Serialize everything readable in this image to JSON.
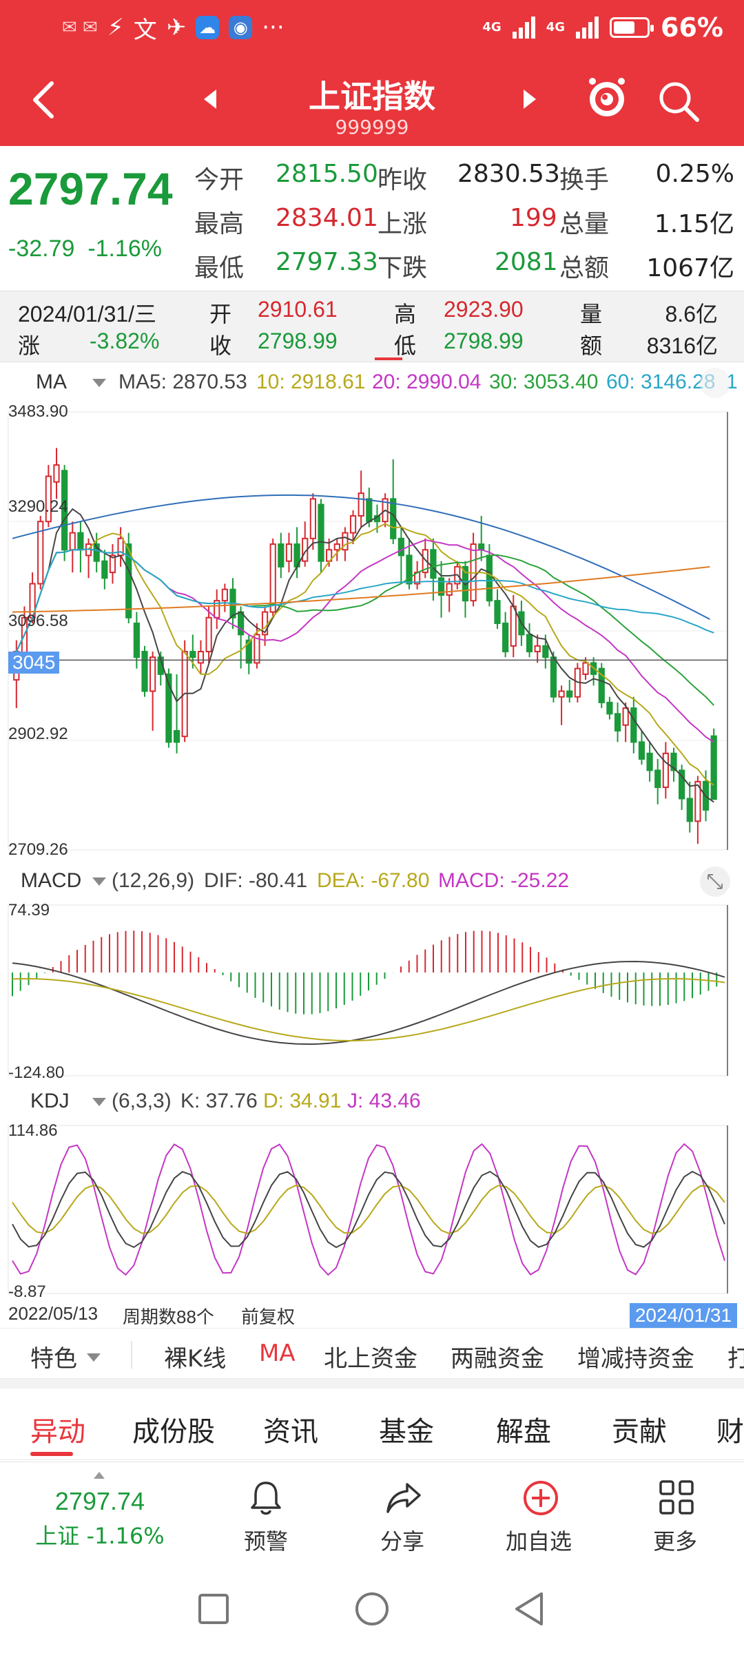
{
  "status": {
    "app_glyphs": [
      "⚡",
      "文",
      "✈"
    ],
    "network1": "4G",
    "network2": "4G",
    "battery_text": "66%",
    "battery_level": 0.66,
    "more": "···"
  },
  "nav": {
    "title": "上证指数",
    "code": "999999"
  },
  "quote": {
    "price": "2797.74",
    "change": "-32.79",
    "change_pct": "-1.16%",
    "open_label": "今开",
    "open": "2815.50",
    "prev_close_label": "昨收",
    "prev_close": "2830.53",
    "turnover_label": "换手",
    "turnover": "0.25%",
    "high_label": "最高",
    "high": "2834.01",
    "up_label": "上涨",
    "up": "199",
    "volume_label": "总量",
    "volume": "1.15亿",
    "low_label": "最低",
    "low": "2797.33",
    "down_label": "下跌",
    "down": "2081",
    "amount_label": "总额",
    "amount": "1067亿"
  },
  "day": {
    "date": "2024/01/31/三",
    "chg_label": "涨",
    "chg": "-3.82%",
    "open_label": "开",
    "open": "2910.61",
    "close_label": "收",
    "close": "2798.99",
    "high_label": "高",
    "high": "2923.90",
    "low_label": "低",
    "low": "2798.99",
    "vol_label": "量",
    "vol": "8.6亿",
    "amt_label": "额",
    "amt": "8316亿"
  },
  "ma_legend": {
    "name": "MA",
    "ma5": "MA5: 2870.53",
    "ma10": "10: 2918.61",
    "ma20": "20: 2990.04",
    "ma30": "30: 3053.40",
    "ma60": "60: 3146.28",
    "trailing": "1"
  },
  "macd_legend": {
    "name": "MACD",
    "params": "(12,26,9)",
    "dif": "DIF: -80.41",
    "dea": "DEA: -67.80",
    "macd": "MACD: -25.22"
  },
  "kdj_legend": {
    "name": "KDJ",
    "params": "(6,3,3)",
    "k": "K: 37.76",
    "d": "D: 34.91",
    "j": "J: 43.46"
  },
  "colors": {
    "up": "#d6282f",
    "down": "#1a9a3a",
    "ma5": "#444444",
    "ma10": "#b7a81a",
    "ma20": "#c436c4",
    "ma30": "#2aa23a",
    "ma60": "#2aa6c8",
    "ma_long1": "#2f6db8",
    "ma_long2": "#e07a20"
  },
  "chart_data": [
    {
      "type": "candlestick",
      "title": "MA",
      "y_ticks": [
        "3483.90",
        "3290.24",
        "3096.58",
        "2902.92",
        "2709.26"
      ],
      "ylim": [
        2709.26,
        3483.9
      ],
      "crosshair_value": "3045",
      "date_start": "2022/05/13",
      "date_end": "2024/01/31",
      "period_count_label": "周期数88个",
      "adjust_label": "前复权",
      "candles": [
        [
          3010,
          3060,
          2960,
          3080
        ],
        [
          3050,
          3120,
          3040,
          3140
        ],
        [
          3120,
          3180,
          3110,
          3200
        ],
        [
          3180,
          3290,
          3170,
          3300
        ],
        [
          3290,
          3370,
          3280,
          3390
        ],
        [
          3360,
          3390,
          3330,
          3420
        ],
        [
          3380,
          3240,
          3220,
          3390
        ],
        [
          3240,
          3270,
          3200,
          3290
        ],
        [
          3270,
          3240,
          3200,
          3290
        ],
        [
          3230,
          3250,
          3190,
          3260
        ],
        [
          3250,
          3220,
          3200,
          3270
        ],
        [
          3220,
          3190,
          3170,
          3240
        ],
        [
          3200,
          3230,
          3180,
          3250
        ],
        [
          3230,
          3260,
          3210,
          3280
        ],
        [
          3250,
          3120,
          3110,
          3270
        ],
        [
          3110,
          3050,
          3030,
          3130
        ],
        [
          3060,
          2990,
          2980,
          3070
        ],
        [
          2990,
          3050,
          2920,
          3060
        ],
        [
          3050,
          3020,
          3000,
          3060
        ],
        [
          3020,
          2900,
          2890,
          3030
        ],
        [
          2920,
          2900,
          2880,
          3020
        ],
        [
          2910,
          3060,
          2900,
          3080
        ],
        [
          3060,
          3050,
          3030,
          3090
        ],
        [
          3040,
          3060,
          3020,
          3080
        ],
        [
          3060,
          3120,
          3040,
          3140
        ],
        [
          3120,
          3150,
          3100,
          3170
        ],
        [
          3150,
          3170,
          3130,
          3180
        ],
        [
          3170,
          3120,
          3100,
          3190
        ],
        [
          3130,
          3090,
          3030,
          3140
        ],
        [
          3080,
          3040,
          3020,
          3090
        ],
        [
          3040,
          3090,
          3030,
          3110
        ],
        [
          3090,
          3130,
          3070,
          3140
        ],
        [
          3130,
          3250,
          3120,
          3260
        ],
        [
          3250,
          3210,
          3190,
          3270
        ],
        [
          3220,
          3250,
          3200,
          3270
        ],
        [
          3250,
          3210,
          3190,
          3280
        ],
        [
          3220,
          3260,
          3210,
          3290
        ],
        [
          3260,
          3330,
          3240,
          3340
        ],
        [
          3320,
          3220,
          3200,
          3330
        ],
        [
          3220,
          3240,
          3210,
          3260
        ],
        [
          3240,
          3250,
          3220,
          3260
        ],
        [
          3240,
          3270,
          3220,
          3280
        ],
        [
          3270,
          3300,
          3250,
          3310
        ],
        [
          3300,
          3340,
          3280,
          3380
        ],
        [
          3330,
          3290,
          3280,
          3350
        ],
        [
          3300,
          3290,
          3270,
          3320
        ],
        [
          3290,
          3330,
          3280,
          3340
        ],
        [
          3330,
          3260,
          3250,
          3400
        ],
        [
          3260,
          3230,
          3180,
          3280
        ],
        [
          3230,
          3180,
          3170,
          3260
        ],
        [
          3180,
          3200,
          3170,
          3220
        ],
        [
          3200,
          3240,
          3190,
          3260
        ],
        [
          3240,
          3190,
          3150,
          3260
        ],
        [
          3190,
          3160,
          3120,
          3220
        ],
        [
          3160,
          3180,
          3130,
          3190
        ],
        [
          3180,
          3210,
          3170,
          3220
        ],
        [
          3210,
          3150,
          3120,
          3220
        ],
        [
          3150,
          3250,
          3140,
          3270
        ],
        [
          3250,
          3240,
          3220,
          3300
        ],
        [
          3230,
          3150,
          3140,
          3250
        ],
        [
          3150,
          3110,
          3100,
          3170
        ],
        [
          3110,
          3060,
          3050,
          3130
        ],
        [
          3070,
          3140,
          3050,
          3160
        ],
        [
          3130,
          3090,
          3070,
          3150
        ],
        [
          3090,
          3060,
          3050,
          3110
        ],
        [
          3060,
          3070,
          3040,
          3090
        ],
        [
          3070,
          3050,
          3030,
          3090
        ],
        [
          3050,
          2980,
          2970,
          3060
        ],
        [
          2980,
          2990,
          2930,
          3000
        ],
        [
          2990,
          2980,
          2970,
          3010
        ],
        [
          2980,
          3030,
          2970,
          3040
        ],
        [
          3020,
          3040,
          3010,
          3050
        ],
        [
          3040,
          3020,
          3000,
          3050
        ],
        [
          3030,
          2970,
          2960,
          3040
        ],
        [
          2970,
          2950,
          2940,
          2980
        ],
        [
          2950,
          2920,
          2900,
          2970
        ],
        [
          2930,
          2960,
          2900,
          2970
        ],
        [
          2960,
          2900,
          2880,
          2980
        ],
        [
          2900,
          2870,
          2860,
          2920
        ],
        [
          2880,
          2850,
          2830,
          2900
        ],
        [
          2850,
          2820,
          2790,
          2870
        ],
        [
          2820,
          2880,
          2800,
          2900
        ],
        [
          2880,
          2850,
          2830,
          2890
        ],
        [
          2850,
          2800,
          2780,
          2860
        ],
        [
          2800,
          2760,
          2740,
          2830
        ],
        [
          2760,
          2830,
          2720,
          2840
        ],
        [
          2830,
          2780,
          2760,
          2850
        ],
        [
          2910.61,
          2798.99,
          2798.99,
          2923.9
        ]
      ]
    },
    {
      "type": "line",
      "title": "MACD",
      "y_ticks": [
        "74.39",
        "-124.80"
      ],
      "ylim": [
        -124.8,
        74.39
      ]
    },
    {
      "type": "line",
      "title": "KDJ",
      "y_ticks": [
        "114.86",
        "-8.87"
      ],
      "ylim": [
        -8.87,
        114.86
      ]
    }
  ],
  "indicator_tabs": [
    "特色",
    "裸K线",
    "MA",
    "北上资金",
    "两融资金",
    "增减持资金",
    "打"
  ],
  "section_tabs": [
    "异动",
    "成份股",
    "资讯",
    "基金",
    "解盘",
    "贡献",
    "财"
  ],
  "toolbar": {
    "price": "2797.74",
    "price_label": "上证 -1.16%",
    "alert": "预警",
    "share": "分享",
    "add": "加自选",
    "more": "更多"
  }
}
